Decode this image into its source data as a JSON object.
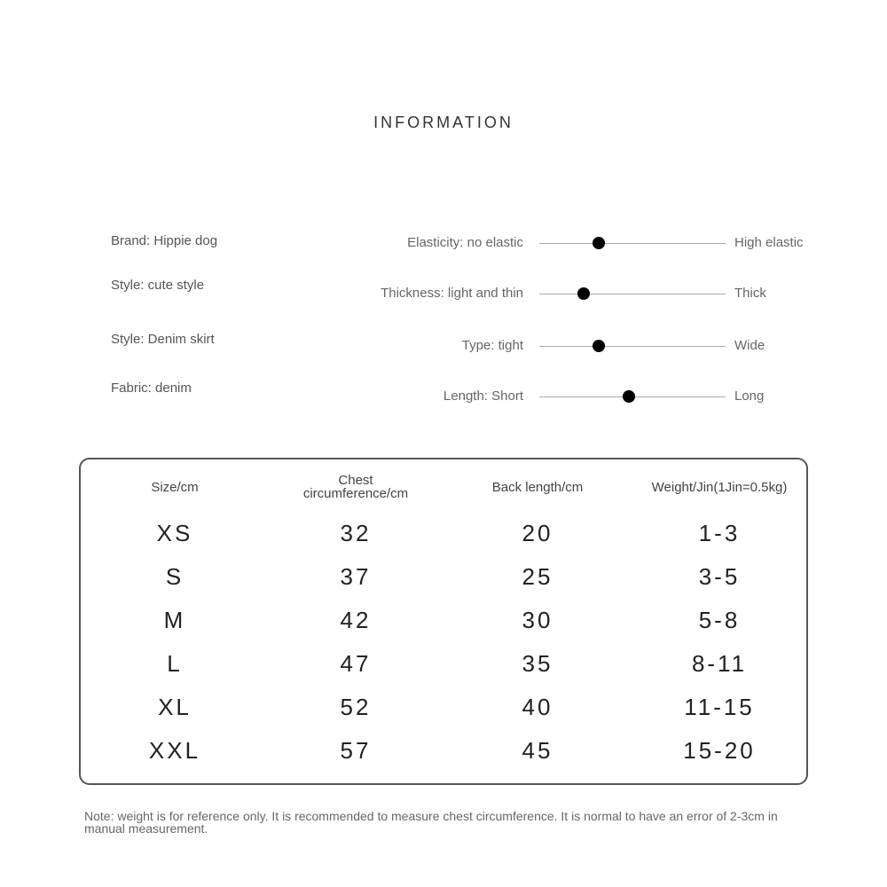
{
  "header": {
    "title": "INFORMATION"
  },
  "attributes": [
    "Brand: Hippie dog",
    "Style: cute style",
    "Style: Denim skirt",
    "Fabric: denim"
  ],
  "sliders": [
    {
      "left": "Elasticity: no elastic",
      "right": "High elastic"
    },
    {
      "left": "Thickness: light and thin",
      "right": "Thick"
    },
    {
      "left": "Type: tight",
      "right": "Wide"
    },
    {
      "left": "Length: Short",
      "right": "Long"
    }
  ],
  "table": {
    "headers": [
      "Size/cm",
      "Chest circumference/cm",
      "Back length/cm",
      "Weight/Jin(1Jin=0.5kg)"
    ],
    "rows": [
      [
        "XS",
        "32",
        "20",
        "1-3"
      ],
      [
        "S",
        "37",
        "25",
        "3-5"
      ],
      [
        "M",
        "42",
        "30",
        "5-8"
      ],
      [
        "L",
        "47",
        "35",
        "8-11"
      ],
      [
        "XL",
        "52",
        "40",
        "11-15"
      ],
      [
        "XXL",
        "57",
        "45",
        "15-20"
      ]
    ]
  },
  "note": "Note: weight is for reference only. It is recommended to measure chest circumference. It is normal to have an error of 2-3cm in manual measurement."
}
